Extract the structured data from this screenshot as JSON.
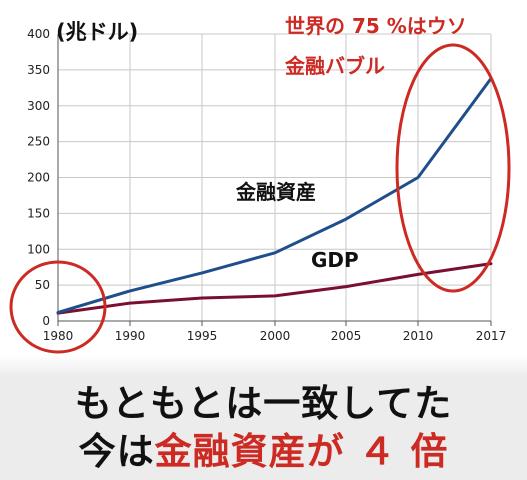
{
  "chart_data": {
    "type": "line",
    "ylabel": "(兆ドル)",
    "xlabel": "",
    "x": [
      1980,
      1990,
      1995,
      2000,
      2005,
      2010,
      2017
    ],
    "x_ticks": [
      "1980",
      "1990",
      "1995",
      "2000",
      "2005",
      "2010",
      "2017"
    ],
    "y_ticks": [
      "0",
      "50",
      "100",
      "150",
      "200",
      "250",
      "300",
      "350",
      "400"
    ],
    "ylim": [
      0,
      400
    ],
    "grid": true,
    "series": [
      {
        "name": "金融資産",
        "color": "#1f4e8c",
        "values": [
          12,
          42,
          67,
          95,
          142,
          200,
          338
        ]
      },
      {
        "name": "GDP",
        "color": "#7a1030",
        "values": [
          11,
          25,
          32,
          35,
          48,
          65,
          80
        ]
      }
    ],
    "annotations": {
      "line1": "世界の 75 %はウソ",
      "line2": "金融バブル"
    },
    "highlight_color": "#cc2a22"
  },
  "caption": {
    "line1": "もともとは一致してた",
    "line2_prefix": "今は",
    "line2_highlight": "金融資産が ４ 倍"
  }
}
